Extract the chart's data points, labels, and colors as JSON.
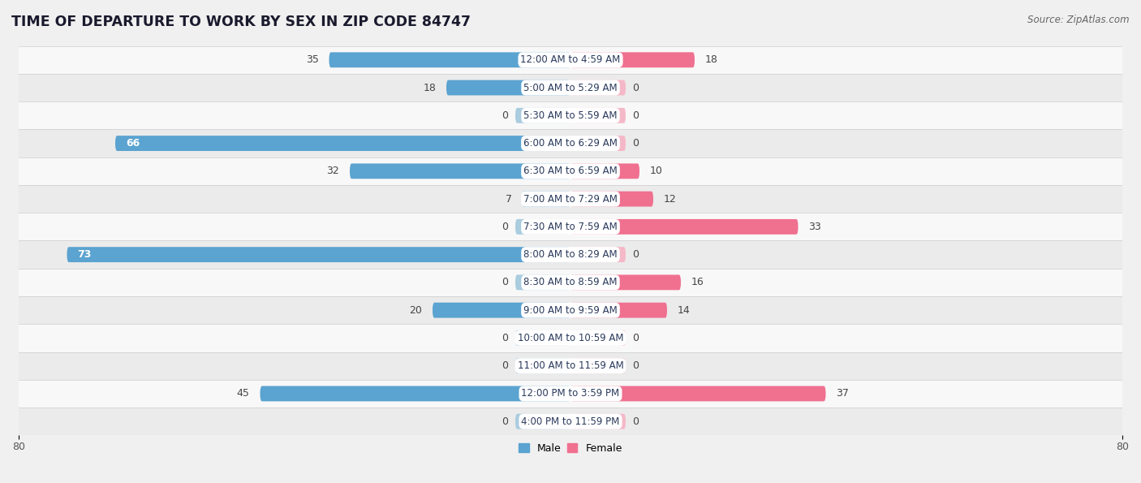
{
  "title": "TIME OF DEPARTURE TO WORK BY SEX IN ZIP CODE 84747",
  "source": "Source: ZipAtlas.com",
  "categories": [
    "12:00 AM to 4:59 AM",
    "5:00 AM to 5:29 AM",
    "5:30 AM to 5:59 AM",
    "6:00 AM to 6:29 AM",
    "6:30 AM to 6:59 AM",
    "7:00 AM to 7:29 AM",
    "7:30 AM to 7:59 AM",
    "8:00 AM to 8:29 AM",
    "8:30 AM to 8:59 AM",
    "9:00 AM to 9:59 AM",
    "10:00 AM to 10:59 AM",
    "11:00 AM to 11:59 AM",
    "12:00 PM to 3:59 PM",
    "4:00 PM to 11:59 PM"
  ],
  "male_values": [
    35,
    18,
    0,
    66,
    32,
    7,
    0,
    73,
    0,
    20,
    0,
    0,
    45,
    0
  ],
  "female_values": [
    18,
    0,
    0,
    0,
    10,
    12,
    33,
    0,
    16,
    14,
    0,
    0,
    37,
    0
  ],
  "male_color": "#5ba3d0",
  "male_color_light": "#aaccdf",
  "female_color": "#f07090",
  "female_color_light": "#f5b8c8",
  "background_color": "#f0f0f0",
  "row_color_odd": "#f8f8f8",
  "row_color_even": "#ebebeb",
  "axis_limit": 80,
  "legend_male": "Male",
  "legend_female": "Female",
  "bar_height": 0.55
}
